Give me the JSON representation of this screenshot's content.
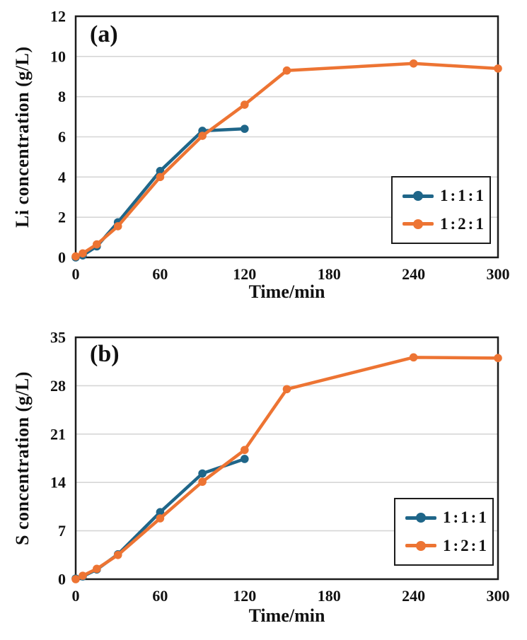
{
  "figure_title": "",
  "style": {
    "series_blue": "#1F6689",
    "series_orange": "#ED7433",
    "grid_color": "#D6D6D6",
    "axis_color": "#1c1c1c",
    "background": "#ffffff",
    "text_color": "#111111"
  },
  "chart_data": [
    {
      "type": "line",
      "panel_label": "(a)",
      "xlabel": "Time/min",
      "ylabel": "Li concentration (g/L)",
      "xlim": [
        0,
        300
      ],
      "ylim": [
        0,
        12
      ],
      "xticks": [
        0,
        60,
        120,
        180,
        240,
        300
      ],
      "yticks": [
        0,
        2,
        4,
        6,
        8,
        10,
        12
      ],
      "grid": "horizontal",
      "legend_position": "lower right",
      "series": [
        {
          "name": "1:1:1",
          "color": "#1F6689",
          "x": [
            0,
            5,
            15,
            30,
            60,
            90,
            120
          ],
          "y": [
            0.0,
            0.1,
            0.55,
            1.75,
            4.3,
            6.3,
            6.4
          ]
        },
        {
          "name": "1:2:1",
          "color": "#ED7433",
          "x": [
            0,
            5,
            15,
            30,
            60,
            90,
            120,
            150,
            240,
            300
          ],
          "y": [
            0.05,
            0.2,
            0.65,
            1.55,
            4.0,
            6.05,
            7.6,
            9.3,
            9.65,
            9.4
          ]
        }
      ]
    },
    {
      "type": "line",
      "panel_label": "(b)",
      "xlabel": "Time/min",
      "ylabel": "S concentration (g/L)",
      "xlim": [
        0,
        300
      ],
      "ylim": [
        0,
        35
      ],
      "xticks": [
        0,
        60,
        120,
        180,
        240,
        300
      ],
      "yticks": [
        0,
        7,
        14,
        21,
        28,
        35
      ],
      "grid": "horizontal",
      "legend_position": "lower right",
      "series": [
        {
          "name": "1:1:1",
          "color": "#1F6689",
          "x": [
            0,
            5,
            15,
            30,
            60,
            90,
            120
          ],
          "y": [
            0.1,
            0.4,
            1.4,
            3.6,
            9.7,
            15.3,
            17.4
          ]
        },
        {
          "name": "1:2:1",
          "color": "#ED7433",
          "x": [
            0,
            5,
            15,
            30,
            60,
            90,
            120,
            150,
            240,
            300
          ],
          "y": [
            0.0,
            0.5,
            1.5,
            3.5,
            8.8,
            14.1,
            18.7,
            27.5,
            32.1,
            32.0
          ]
        }
      ]
    }
  ]
}
